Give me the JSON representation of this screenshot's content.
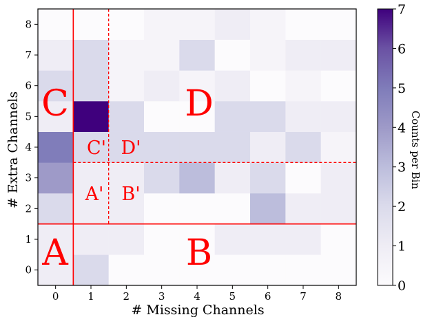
{
  "chart_data": {
    "type": "heatmap",
    "xlabel": "# Missing Channels",
    "ylabel": "# Extra Channels",
    "colorbar_label": "Counts per Bin",
    "x_ticks": [
      "0",
      "1",
      "2",
      "3",
      "4",
      "5",
      "6",
      "7",
      "8"
    ],
    "y_ticks": [
      "0",
      "1",
      "2",
      "3",
      "4",
      "5",
      "6",
      "7",
      "8"
    ],
    "colorbar_ticks": [
      "0",
      "1",
      "2",
      "3",
      "4",
      "5",
      "6",
      "7"
    ],
    "vmin": 0,
    "vmax": 7,
    "colormap": "Purples",
    "values": [
      [
        1,
        2,
        0,
        0,
        0,
        0,
        0,
        0,
        0
      ],
      [
        1,
        1,
        1,
        0,
        0,
        1,
        1,
        1,
        0
      ],
      [
        2,
        1,
        1,
        0,
        0,
        0,
        3,
        1,
        1
      ],
      [
        4,
        1,
        1,
        2,
        3,
        1,
        2,
        0,
        1
      ],
      [
        5,
        2,
        2,
        2,
        2,
        2,
        1,
        2,
        0.5
      ],
      [
        1,
        7,
        2,
        0,
        0,
        2,
        2,
        1,
        1
      ],
      [
        2,
        2,
        0.5,
        1,
        0.5,
        1,
        0,
        0.5,
        0
      ],
      [
        1,
        2,
        0.5,
        0.5,
        2,
        0,
        0.5,
        1,
        1
      ],
      [
        0,
        0,
        0,
        0.5,
        0.5,
        1,
        0.5,
        0,
        0
      ]
    ],
    "region_labels": {
      "A": "A",
      "B": "B",
      "C": "C",
      "D": "D",
      "A_prime": "A'",
      "B_prime": "B'",
      "C_prime": "C'",
      "D_prime": "D'"
    },
    "divider_color": "#ff0000"
  }
}
